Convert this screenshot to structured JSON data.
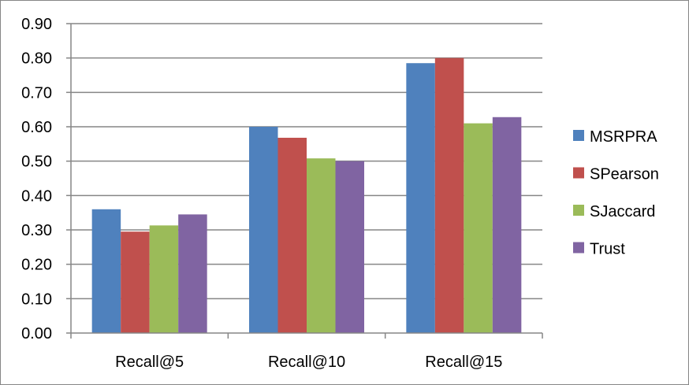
{
  "chart_data": {
    "type": "bar",
    "categories": [
      "Recall@5",
      "Recall@10",
      "Recall@15"
    ],
    "series": [
      {
        "name": "MSRPRA",
        "values": [
          0.36,
          0.6,
          0.785
        ],
        "color": "#4F81BD"
      },
      {
        "name": "SPearson",
        "values": [
          0.295,
          0.568,
          0.8
        ],
        "color": "#C0504D"
      },
      {
        "name": "SJaccard",
        "values": [
          0.313,
          0.508,
          0.61
        ],
        "color": "#9BBB59"
      },
      {
        "name": "Trust",
        "values": [
          0.345,
          0.5,
          0.628
        ],
        "color": "#8064A2"
      }
    ],
    "yticks": [
      "0.00",
      "0.10",
      "0.20",
      "0.30",
      "0.40",
      "0.50",
      "0.60",
      "0.70",
      "0.80",
      "0.90"
    ],
    "ylim": [
      0,
      0.9
    ],
    "grid": true,
    "legend_position": "right"
  }
}
